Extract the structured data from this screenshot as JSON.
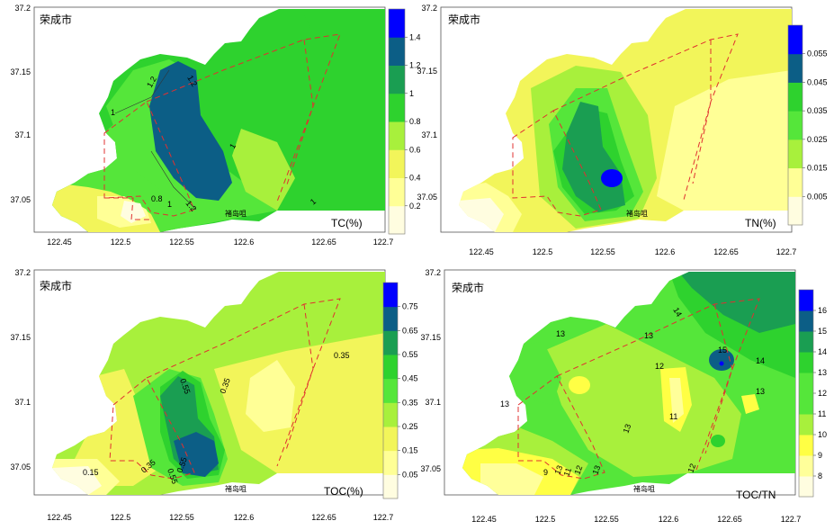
{
  "palettes": {
    "green_blue": [
      "#fffde0",
      "#ffff96",
      "#f2f55a",
      "#a8f03c",
      "#55e63a",
      "#2ed22e",
      "#1a9e52",
      "#0c5e86",
      "#0000ff"
    ],
    "toctn": [
      "#fffde0",
      "#ffff9a",
      "#ffff44",
      "#a8f03c",
      "#55e63a",
      "#2ed22e",
      "#1a9e52",
      "#0c5e86",
      "#0000ff"
    ]
  },
  "panels": [
    {
      "city_label": "荣成市",
      "place_label": "褚岛咀",
      "param_label": "TC(%)",
      "axes": {
        "xticks": [
          "122.45",
          "122.5",
          "122.55",
          "122.6",
          "122.65",
          "122.7"
        ],
        "yticks": [
          "37.05",
          "37.1",
          "37.15",
          "37.2"
        ]
      },
      "legend_ticks": [
        "0.2",
        "0.4",
        "0.6",
        "0.8",
        "1",
        "1.2",
        "1.4"
      ],
      "contour_labels": [
        "1.2",
        "1.2",
        "1",
        "1",
        "0.8",
        "1",
        "1.2",
        "1",
        "1"
      ]
    },
    {
      "city_label": "荣成市",
      "place_label": "褚岛咀",
      "param_label": "TN(%)",
      "axes": {
        "xticks": [
          "122.45",
          "122.5",
          "122.55",
          "122.6",
          "122.65",
          "122.7"
        ],
        "yticks": [
          "37.05",
          "37.1",
          "37.15",
          "37.2"
        ]
      },
      "legend_ticks": [
        "0.005",
        "0.015",
        "0.025",
        "0.035",
        "0.045",
        "0.055"
      ],
      "contour_labels": []
    },
    {
      "city_label": "荣成市",
      "place_label": "褚岛咀",
      "param_label": "TOC(%)",
      "axes": {
        "xticks": [
          "122.45",
          "122.5",
          "122.55",
          "122.6",
          "122.65",
          "122.7"
        ],
        "yticks": [
          "37.05",
          "37.1",
          "37.15",
          "37.2"
        ]
      },
      "legend_ticks": [
        "0.05",
        "0.15",
        "0.25",
        "0.35",
        "0.45",
        "0.55",
        "0.65",
        "0.75"
      ],
      "contour_labels": [
        "0.55",
        "0.35",
        "0.35",
        "0.15",
        "0.35",
        "0.55",
        "0.55"
      ]
    },
    {
      "city_label": "荣成市",
      "place_label": "褚岛咀",
      "param_label": "TOC/TN",
      "axes": {
        "xticks": [
          "122.45",
          "122.5",
          "122.55",
          "122.6",
          "122.65",
          "122.7"
        ],
        "yticks": [
          "37.05",
          "37.1",
          "37.15",
          "37.2"
        ]
      },
      "legend_ticks": [
        "8",
        "9",
        "10",
        "11",
        "12",
        "13",
        "14",
        "15",
        "16"
      ],
      "contour_labels": [
        "14",
        "13",
        "13",
        "15",
        "14",
        "12",
        "13",
        "13",
        "11",
        "13",
        "13",
        "9",
        "11",
        "12",
        "13",
        "12"
      ]
    }
  ]
}
